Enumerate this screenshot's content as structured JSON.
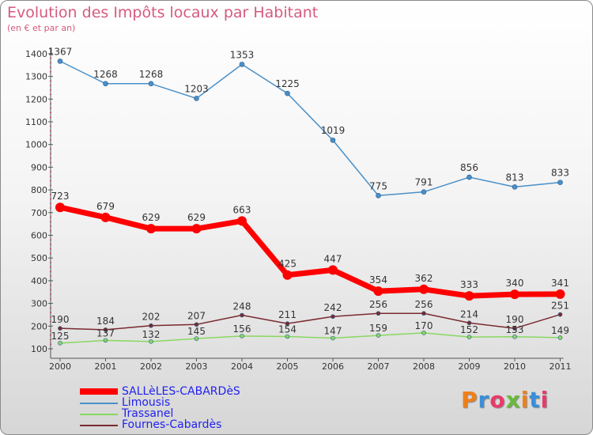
{
  "title": "Evolution des Impôts locaux par Habitant",
  "subtitle": "(en € et par an)",
  "logo": "Proxiti",
  "chart_data": {
    "type": "line",
    "x": [
      "2000",
      "2001",
      "2002",
      "2003",
      "2004",
      "2005",
      "2006",
      "2007",
      "2008",
      "2009",
      "2010",
      "2011"
    ],
    "ylim": [
      100,
      1400
    ],
    "yticks": [
      100,
      200,
      300,
      400,
      500,
      600,
      700,
      800,
      900,
      1000,
      1100,
      1200,
      1300,
      1400
    ],
    "grid": false,
    "legend_position": "bottom-left",
    "series": [
      {
        "name": "SALLèLES-CABARDèS",
        "color": "#ff0000",
        "values": [
          723,
          679,
          629,
          629,
          663,
          425,
          447,
          354,
          362,
          333,
          340,
          341
        ]
      },
      {
        "name": "Limousis",
        "color": "#4a90c8",
        "values": [
          1367,
          1268,
          1268,
          1203,
          1353,
          1225,
          1019,
          775,
          791,
          856,
          813,
          833
        ]
      },
      {
        "name": "Trassanel",
        "color": "#88d860",
        "values": [
          125,
          137,
          132,
          145,
          156,
          154,
          147,
          159,
          170,
          152,
          153,
          149
        ]
      },
      {
        "name": "Fournes-Cabardès",
        "color": "#7a2a30",
        "values": [
          190,
          184,
          202,
          207,
          248,
          211,
          242,
          256,
          256,
          214,
          190,
          251
        ]
      }
    ]
  }
}
